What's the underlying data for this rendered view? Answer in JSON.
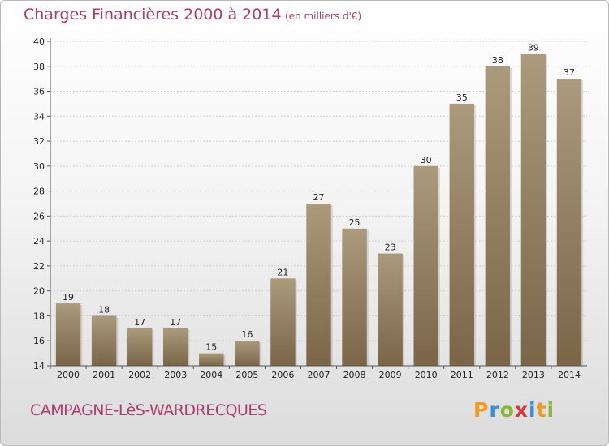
{
  "header": {
    "title": "Charges Financières 2000 à 2014",
    "unit": "(en milliers d'€)"
  },
  "footer": {
    "commune": "CAMPAGNE-LèS-WARDRECQUES",
    "logo": "Proxiti"
  },
  "colors": {
    "title": "#b03b6e",
    "bar_light": "#ab9a7c",
    "bar_dark": "#7a6547",
    "grid": "#cfcfcf"
  },
  "chart_data": {
    "type": "bar",
    "title": "Charges Financières 2000 à 2014",
    "subtitle": "(en milliers d'€)",
    "categories": [
      "2000",
      "2001",
      "2002",
      "2003",
      "2004",
      "2005",
      "2006",
      "2007",
      "2008",
      "2009",
      "2010",
      "2011",
      "2012",
      "2013",
      "2014"
    ],
    "values": [
      19,
      18,
      17,
      17,
      15,
      16,
      21,
      27,
      25,
      23,
      30,
      35,
      38,
      39,
      37
    ],
    "ylim": [
      14,
      40
    ],
    "yticks": [
      14,
      16,
      18,
      20,
      22,
      24,
      26,
      28,
      30,
      32,
      34,
      36,
      38,
      40
    ],
    "grid": true,
    "xlabel": "",
    "ylabel": ""
  }
}
